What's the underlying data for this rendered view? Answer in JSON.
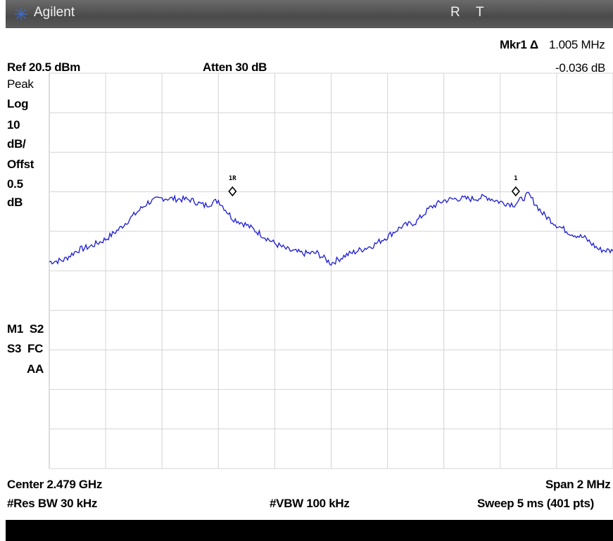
{
  "header": {
    "brand": "Agilent",
    "status_r": "R",
    "status_t": "T"
  },
  "marker": {
    "label": "Mkr1 Δ",
    "freq": "1.005 MHz",
    "delta": "-0.036 dB",
    "ref_label": "1R",
    "label_1": "1"
  },
  "settings": {
    "ref": "Ref 20.5 dBm",
    "atten": "Atten 30 dB",
    "detector": "Peak",
    "scale": [
      "Log",
      "10",
      "dB/",
      "Offst",
      "0.5",
      "dB"
    ],
    "modes": [
      "M1  S2",
      "S3  FC",
      "AA"
    ]
  },
  "bottom": {
    "center": "Center 2.479 GHz",
    "span": "Span 2 MHz",
    "rbw": "#Res BW 30 kHz",
    "vbw": "#VBW 100 kHz",
    "sweep": "Sweep 5 ms (401 pts)"
  },
  "colors": {
    "trace": "#1a1ad8",
    "grid": "#d4d4d4",
    "background": "#ffffff"
  },
  "chart_data": {
    "type": "line",
    "x": [
      -1.0,
      -0.95,
      -0.9,
      -0.85,
      -0.8,
      -0.75,
      -0.7,
      -0.65,
      -0.6,
      -0.55,
      -0.5,
      -0.45,
      -0.4,
      -0.35,
      -0.3,
      -0.25,
      -0.2,
      -0.15,
      -0.1,
      -0.05,
      0.0,
      0.05,
      0.1,
      0.15,
      0.2,
      0.25,
      0.3,
      0.35,
      0.4,
      0.45,
      0.5,
      0.55,
      0.6,
      0.65,
      0.7,
      0.75,
      0.8,
      0.85,
      0.9,
      0.95,
      1.0
    ],
    "y": [
      -27.2,
      -26.8,
      -24.3,
      -23.2,
      -21.5,
      -18.8,
      -15.4,
      -12.2,
      -11.1,
      -11.3,
      -11.5,
      -13.0,
      -11.7,
      -16.2,
      -17.9,
      -20.2,
      -22.6,
      -24.3,
      -25.1,
      -25.0,
      -27.6,
      -25.6,
      -24.3,
      -23.0,
      -20.8,
      -18.3,
      -17.2,
      -13.6,
      -11.7,
      -11.2,
      -11.3,
      -10.8,
      -12.1,
      -12.7,
      -10.2,
      -15.0,
      -17.9,
      -20.0,
      -21.2,
      -24.1,
      -24.5
    ],
    "xlim": [
      -1.0,
      1.0
    ],
    "ylim": [
      -79.5,
      20.5
    ],
    "markers": [
      {
        "label": "1R",
        "x": -0.35,
        "y": -9.4
      },
      {
        "label": "1",
        "x": 0.655,
        "y": -9.4
      }
    ],
    "grid": true
  }
}
